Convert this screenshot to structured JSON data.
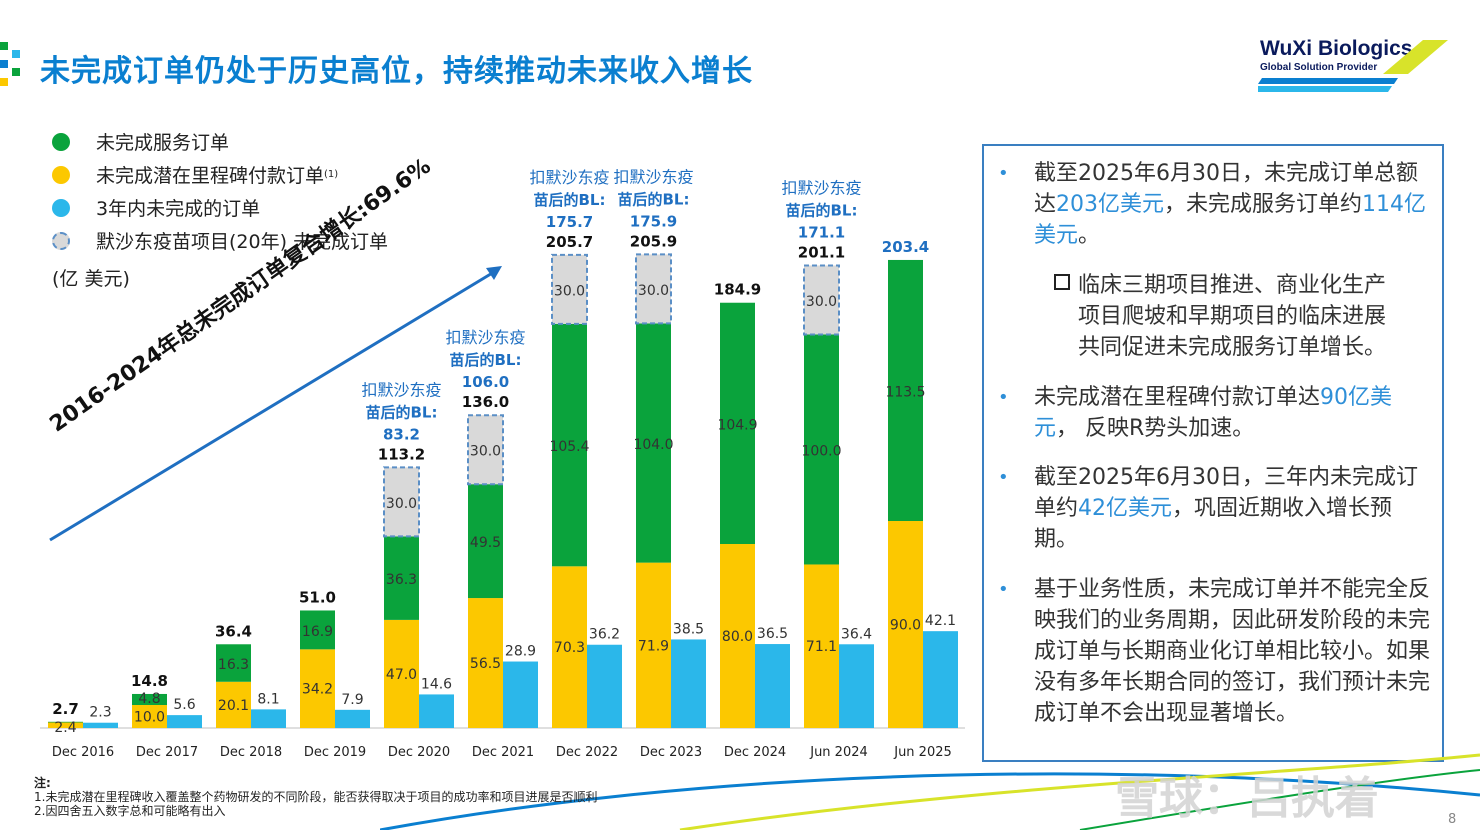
{
  "header": {
    "title": "未完成订单仍处于历史高位，持续推动未来收入增长",
    "logo_title": "WuXi Biologics",
    "logo_subtitle": "Global Solution Provider"
  },
  "legend": [
    {
      "label": "未完成服务订单",
      "note": "",
      "color": "#0aa33c"
    },
    {
      "label": "未完成潜在里程碑付款订单",
      "note": "(1)",
      "color": "#fcc800"
    },
    {
      "label": "3年内未完成的订单",
      "note": "",
      "color": "#2bb7ea"
    },
    {
      "label": "默沙东疫苗项目(20年) 未完成订单",
      "note": "",
      "color": "#d9d9d9"
    }
  ],
  "unit": "(亿 美元)",
  "cagr_label": "2016-2024年总未完成订单复合增长:69.6%",
  "chart_data": {
    "type": "bar",
    "categories": [
      "Dec 2016",
      "Dec 2017",
      "Dec 2018",
      "Dec 2019",
      "Dec 2020",
      "Dec 2021",
      "Dec 2022",
      "Dec 2023",
      "Dec 2024",
      "Jun 2024",
      "Jun 2025"
    ],
    "series": [
      {
        "name": "未完成潜在里程碑付款订单",
        "color": "#fcc800",
        "values": [
          2.4,
          10.0,
          20.1,
          34.2,
          47.0,
          56.5,
          70.3,
          71.9,
          80.0,
          71.1,
          90.0
        ]
      },
      {
        "name": "未完成服务订单",
        "color": "#0aa33c",
        "values": [
          0.3,
          4.8,
          16.3,
          16.9,
          36.3,
          49.5,
          105.4,
          104.0,
          104.9,
          100.0,
          113.5
        ]
      },
      {
        "name": "默沙东疫苗项目(20年) 未完成订单",
        "color": "#d9d9d9",
        "values": [
          null,
          null,
          null,
          null,
          30.0,
          30.0,
          30.0,
          30.0,
          null,
          30.0,
          null
        ]
      },
      {
        "name": "3年内未完成的订单",
        "color": "#2bb7ea",
        "values": [
          2.3,
          5.6,
          8.1,
          7.9,
          14.6,
          28.9,
          36.2,
          38.5,
          36.5,
          36.4,
          42.1
        ]
      }
    ],
    "segment_labels": {
      "yellow": [
        "2.4",
        "10.0",
        "20.1",
        "34.2",
        "47.0",
        "56.5",
        "70.3",
        "71.9",
        "80.0",
        "71.1",
        "90.0"
      ],
      "green": [
        "",
        "4.8",
        "16.3",
        "16.9",
        "36.3",
        "49.5",
        "105.4",
        "104.0",
        "104.9",
        "100.0",
        "113.5"
      ],
      "merck": [
        "",
        "",
        "",
        "",
        "30.0",
        "30.0",
        "30.0",
        "30.0",
        "",
        "30.0",
        ""
      ],
      "blue": [
        "2.3",
        "5.6",
        "8.1",
        "7.9",
        "14.6",
        "28.9",
        "36.2",
        "38.5",
        "36.5",
        "36.4",
        "42.1"
      ]
    },
    "totals": [
      "2.7",
      "14.8",
      "36.4",
      "51.0",
      "113.2",
      "136.0",
      "205.7",
      "205.9",
      "184.9",
      "201.1",
      "203.4"
    ],
    "bl_note": "扣默沙东疫苗后的BL:",
    "bl_values": [
      "",
      "",
      "",
      "",
      "83.2",
      "106.0",
      "175.7",
      "175.9",
      "",
      "171.1",
      ""
    ],
    "ylim": [
      0,
      215
    ]
  },
  "panel": {
    "b1_pre": "截至2025年6月30日，未完成订单总额达",
    "b1_hl1": "203亿美元",
    "b1_mid": "，未完成服务订单约",
    "b1_hl2": "114亿美元",
    "b1_post": "。",
    "sub_line1": "临床三期项目推进、商业化生产",
    "sub_line2": "项目爬坡和早期项目的临床进展",
    "sub_line3": "共同促进未完成服务订单增长。",
    "b2_pre": "未完成潜在里程碑付款订单达",
    "b2_hl": "90亿美元",
    "b2_post": "， 反映R势头加速。",
    "b3_pre": "截至2025年6月30日，三年内未完成订单约",
    "b3_hl": "42亿美元",
    "b3_post": "，巩固近期收入增长预期。",
    "b4": "基于业务性质，未完成订单并不能完全反映我们的业务周期，因此研发阶段的未完成订单与长期商业化订单相比较小。如果没有多年长期合同的签订，我们预计未完成订单不会出现显著增长。",
    "bullet_mark": "•"
  },
  "notes": {
    "heading": "注:",
    "n1": "1.未完成潜在里程碑收入覆盖整个药物研发的不同阶段，能否获得取决于项目的成功率和项目进展是否顺利",
    "n2": "2.因四舍五入数字总和可能略有出入"
  },
  "watermark": "雪球：吕执着",
  "page_number": "8"
}
